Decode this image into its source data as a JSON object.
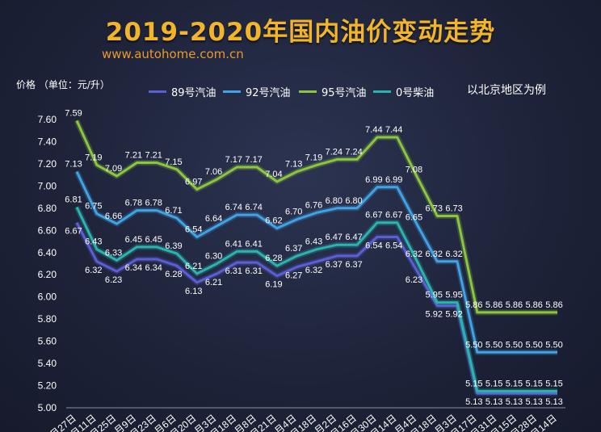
{
  "header": {
    "title": "2019-2020年国内油价变动走势",
    "source": "www.autohome.com.cn",
    "ylabel": "价格 （单位：元/升）",
    "note": "以北京地区为例"
  },
  "colors": {
    "title": "#f2b52a",
    "background": "#1d2238"
  },
  "chart_data": {
    "type": "line",
    "ylim": [
      5.0,
      7.6
    ],
    "yticks": [
      "5.00",
      "5.20",
      "5.40",
      "5.60",
      "5.80",
      "6.00",
      "6.20",
      "6.40",
      "6.60",
      "6.80",
      "7.00",
      "7.20",
      "7.40",
      "7.60"
    ],
    "x": [
      "月27日",
      "月11日",
      "月25日",
      "月9日",
      "月23日",
      "月6日",
      "月20日",
      "月3日",
      "月18日",
      "月8日",
      "月21日",
      "月4日",
      "月18日",
      "月2日",
      "月16日",
      "月30日",
      "月14日",
      "月4日",
      "月18日",
      "月3日",
      "月17日",
      "月31日",
      "月15日",
      "月28日",
      "月14日"
    ],
    "legend_position": "top",
    "grid": false,
    "series": [
      {
        "name": "89号汽油",
        "color": "#5b5fd6",
        "values": [
          6.67,
          6.32,
          6.23,
          6.34,
          6.34,
          6.28,
          6.13,
          6.21,
          6.31,
          6.31,
          6.19,
          6.27,
          6.32,
          6.37,
          6.37,
          6.54,
          6.54,
          6.23,
          5.92,
          5.92,
          5.13,
          5.13,
          5.13,
          5.13,
          5.13
        ],
        "labels": [
          "6.67",
          "6.32",
          "6.23",
          "6.34",
          "6.34",
          "6.28",
          "6.13",
          "6.21",
          "6.31",
          "6.31",
          "6.19",
          "6.27",
          "6.32",
          "6.37",
          "6.37",
          "6.54",
          "6.54",
          "6.23",
          "5.92",
          "5.92",
          "5.13",
          "5.13",
          "5.13",
          "5.13",
          "5.13"
        ]
      },
      {
        "name": "92号汽油",
        "color": "#3fa3e6",
        "values": [
          7.13,
          6.75,
          6.66,
          6.78,
          6.78,
          6.71,
          6.54,
          6.64,
          6.74,
          6.74,
          6.62,
          6.7,
          6.76,
          6.8,
          6.8,
          6.99,
          6.99,
          6.65,
          6.32,
          6.32,
          5.5,
          5.5,
          5.5,
          5.5,
          5.5
        ],
        "labels": [
          "7.13",
          "6.75",
          "6.66",
          "6.78",
          "6.78",
          "6.71",
          "6.54",
          "6.64",
          "6.74",
          "6.74",
          "6.62",
          "6.70",
          "6.76",
          "6.80",
          "6.80",
          "6.99",
          "6.99",
          "6.65",
          "6.32",
          "6.32",
          "5.50",
          "5.50",
          "5.50",
          "5.50",
          "5.50"
        ]
      },
      {
        "name": "95号汽油",
        "color": "#8cc63e",
        "values": [
          7.59,
          7.19,
          7.09,
          7.21,
          7.21,
          7.15,
          6.97,
          7.06,
          7.17,
          7.17,
          7.04,
          7.13,
          7.19,
          7.24,
          7.24,
          7.44,
          7.44,
          7.08,
          6.73,
          6.73,
          5.86,
          5.86,
          5.86,
          5.86,
          5.86
        ],
        "labels": [
          "7.59",
          "7.19",
          "7.09",
          "7.21",
          "7.21",
          "7.15",
          "6.97",
          "7.06",
          "7.17",
          "7.17",
          "7.04",
          "7.13",
          "7.19",
          "7.24",
          "7.24",
          "7.44",
          "7.44",
          "7.08",
          "6.73",
          "6.73",
          "5.86",
          "5.86",
          "5.86",
          "5.86",
          "5.86"
        ]
      },
      {
        "name": "0号柴油",
        "color": "#2ab4ae",
        "values": [
          6.81,
          6.43,
          6.33,
          6.45,
          6.45,
          6.39,
          6.21,
          6.3,
          6.41,
          6.41,
          6.28,
          6.37,
          6.43,
          6.47,
          6.47,
          6.67,
          6.67,
          6.32,
          5.95,
          5.95,
          5.15,
          5.15,
          5.15,
          5.15,
          5.15
        ],
        "labels": [
          "6.81",
          "6.43",
          "6.33",
          "6.45",
          "6.45",
          "6.39",
          "6.21",
          "6.30",
          "6.41",
          "6.41",
          "6.28",
          "6.37",
          "6.43",
          "6.47",
          "6.47",
          "6.67",
          "6.67",
          "6.32",
          "5.95",
          "5.95",
          "5.15",
          "5.15",
          "5.15",
          "5.15",
          "5.15"
        ]
      }
    ]
  }
}
